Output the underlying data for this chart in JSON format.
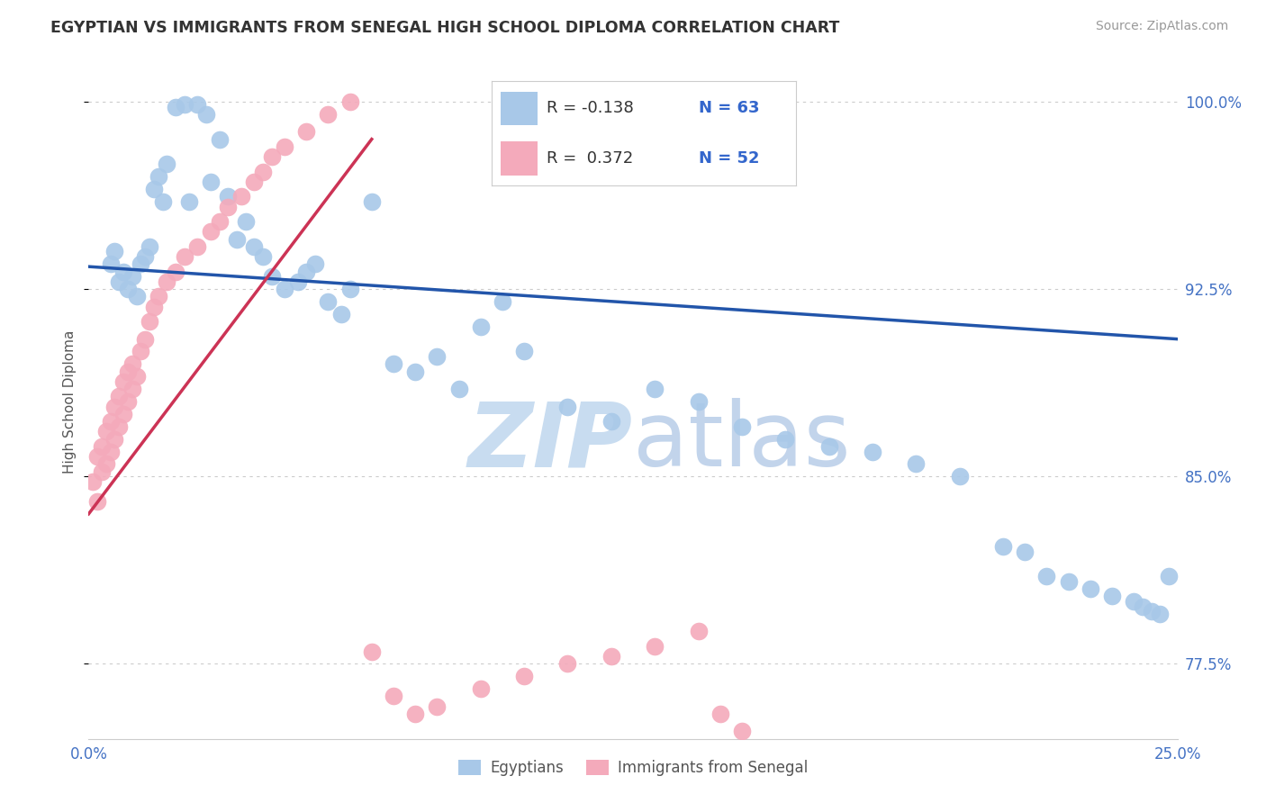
{
  "title": "EGYPTIAN VS IMMIGRANTS FROM SENEGAL HIGH SCHOOL DIPLOMA CORRELATION CHART",
  "source": "Source: ZipAtlas.com",
  "ylabel": "High School Diploma",
  "xlim": [
    0.0,
    0.25
  ],
  "ylim": [
    0.745,
    1.015
  ],
  "y_ticks": [
    0.775,
    0.85,
    0.925,
    1.0
  ],
  "x_ticks": [
    0.0,
    0.25
  ],
  "blue_color": "#A8C8E8",
  "pink_color": "#F4AABB",
  "blue_line_color": "#2255AA",
  "pink_line_color": "#CC3355",
  "watermark_color": "#C8DCF0",
  "background_color": "#ffffff",
  "grid_color": "#CCCCCC",
  "tick_color": "#4472C4",
  "title_color": "#333333",
  "source_color": "#999999",
  "ylabel_color": "#555555",
  "legend_text_color": "#333333",
  "legend_n_color": "#3366CC",
  "blue_x": [
    0.005,
    0.006,
    0.007,
    0.008,
    0.009,
    0.01,
    0.011,
    0.012,
    0.013,
    0.014,
    0.015,
    0.016,
    0.017,
    0.018,
    0.02,
    0.022,
    0.023,
    0.025,
    0.027,
    0.028,
    0.03,
    0.032,
    0.034,
    0.036,
    0.038,
    0.04,
    0.042,
    0.045,
    0.048,
    0.05,
    0.052,
    0.055,
    0.058,
    0.06,
    0.065,
    0.07,
    0.075,
    0.08,
    0.085,
    0.09,
    0.095,
    0.1,
    0.11,
    0.12,
    0.13,
    0.14,
    0.15,
    0.16,
    0.17,
    0.18,
    0.19,
    0.2,
    0.21,
    0.215,
    0.22,
    0.225,
    0.23,
    0.235,
    0.24,
    0.242,
    0.244,
    0.246,
    0.248
  ],
  "blue_y": [
    0.935,
    0.94,
    0.928,
    0.932,
    0.925,
    0.93,
    0.922,
    0.935,
    0.938,
    0.942,
    0.965,
    0.97,
    0.96,
    0.975,
    0.998,
    0.999,
    0.96,
    0.999,
    0.995,
    0.968,
    0.985,
    0.962,
    0.945,
    0.952,
    0.942,
    0.938,
    0.93,
    0.925,
    0.928,
    0.932,
    0.935,
    0.92,
    0.915,
    0.925,
    0.96,
    0.895,
    0.892,
    0.898,
    0.885,
    0.91,
    0.92,
    0.9,
    0.878,
    0.872,
    0.885,
    0.88,
    0.87,
    0.865,
    0.862,
    0.86,
    0.855,
    0.85,
    0.822,
    0.82,
    0.81,
    0.808,
    0.805,
    0.802,
    0.8,
    0.798,
    0.796,
    0.795,
    0.81
  ],
  "pink_x": [
    0.001,
    0.002,
    0.002,
    0.003,
    0.003,
    0.004,
    0.004,
    0.005,
    0.005,
    0.006,
    0.006,
    0.007,
    0.007,
    0.008,
    0.008,
    0.009,
    0.009,
    0.01,
    0.01,
    0.011,
    0.012,
    0.013,
    0.014,
    0.015,
    0.016,
    0.018,
    0.02,
    0.022,
    0.025,
    0.028,
    0.03,
    0.032,
    0.035,
    0.038,
    0.04,
    0.042,
    0.045,
    0.05,
    0.055,
    0.06,
    0.065,
    0.07,
    0.075,
    0.08,
    0.09,
    0.1,
    0.11,
    0.12,
    0.13,
    0.14,
    0.145,
    0.15
  ],
  "pink_y": [
    0.848,
    0.84,
    0.858,
    0.852,
    0.862,
    0.855,
    0.868,
    0.86,
    0.872,
    0.865,
    0.878,
    0.87,
    0.882,
    0.875,
    0.888,
    0.88,
    0.892,
    0.885,
    0.895,
    0.89,
    0.9,
    0.905,
    0.912,
    0.918,
    0.922,
    0.928,
    0.932,
    0.938,
    0.942,
    0.948,
    0.952,
    0.958,
    0.962,
    0.968,
    0.972,
    0.978,
    0.982,
    0.988,
    0.995,
    1.0,
    0.78,
    0.762,
    0.755,
    0.758,
    0.765,
    0.77,
    0.775,
    0.778,
    0.782,
    0.788,
    0.755,
    0.748
  ]
}
